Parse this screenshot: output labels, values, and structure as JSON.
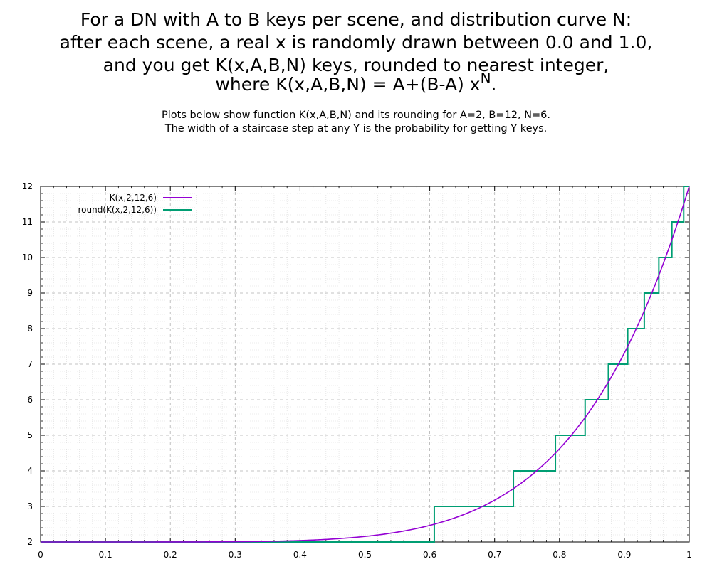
{
  "title": {
    "line1": "For a DN with A to B keys per scene, and distribution curve N:",
    "line2": "after each scene, a real x is randomly drawn between 0.0 and 1.0,",
    "line3": "and you get K(x,A,B,N) keys, rounded to nearest integer,",
    "line4": "where K(x,A,B,N) = A+(B-A) x",
    "line4_sup": "N",
    "line4_end": "."
  },
  "subtitle": {
    "line1": "Plots below show function K(x,A,B,N) and its rounding for A=2, B=12, N=6.",
    "line2": "The width of a staircase step at any Y is the probability for getting Y keys."
  },
  "chart_data": {
    "type": "line",
    "xlim": [
      0,
      1
    ],
    "ylim": [
      2,
      12
    ],
    "x_ticks": [
      0,
      0.1,
      0.2,
      0.3,
      0.4,
      0.5,
      0.6,
      0.7,
      0.8,
      0.9,
      1
    ],
    "x_tick_labels": [
      "0",
      "0.1",
      "0.2",
      "0.3",
      "0.4",
      "0.5",
      "0.6",
      "0.7",
      "0.8",
      "0.9",
      "1"
    ],
    "y_ticks": [
      2,
      3,
      4,
      5,
      6,
      7,
      8,
      9,
      10,
      11,
      12
    ],
    "y_tick_labels": [
      "2",
      "3",
      "4",
      "5",
      "6",
      "7",
      "8",
      "9",
      "10",
      "11",
      "12"
    ],
    "grid": true,
    "legend_position": "top-left",
    "series": [
      {
        "name": "K(x,2,12,6)",
        "color": "#9400d3",
        "function": "2+(12-2)*x^6"
      },
      {
        "name": "round(K(x,2,12,6))",
        "color": "#009e73",
        "function": "round(2+(12-2)*x^6)"
      }
    ],
    "params": {
      "A": 2,
      "B": 12,
      "N": 6
    }
  }
}
